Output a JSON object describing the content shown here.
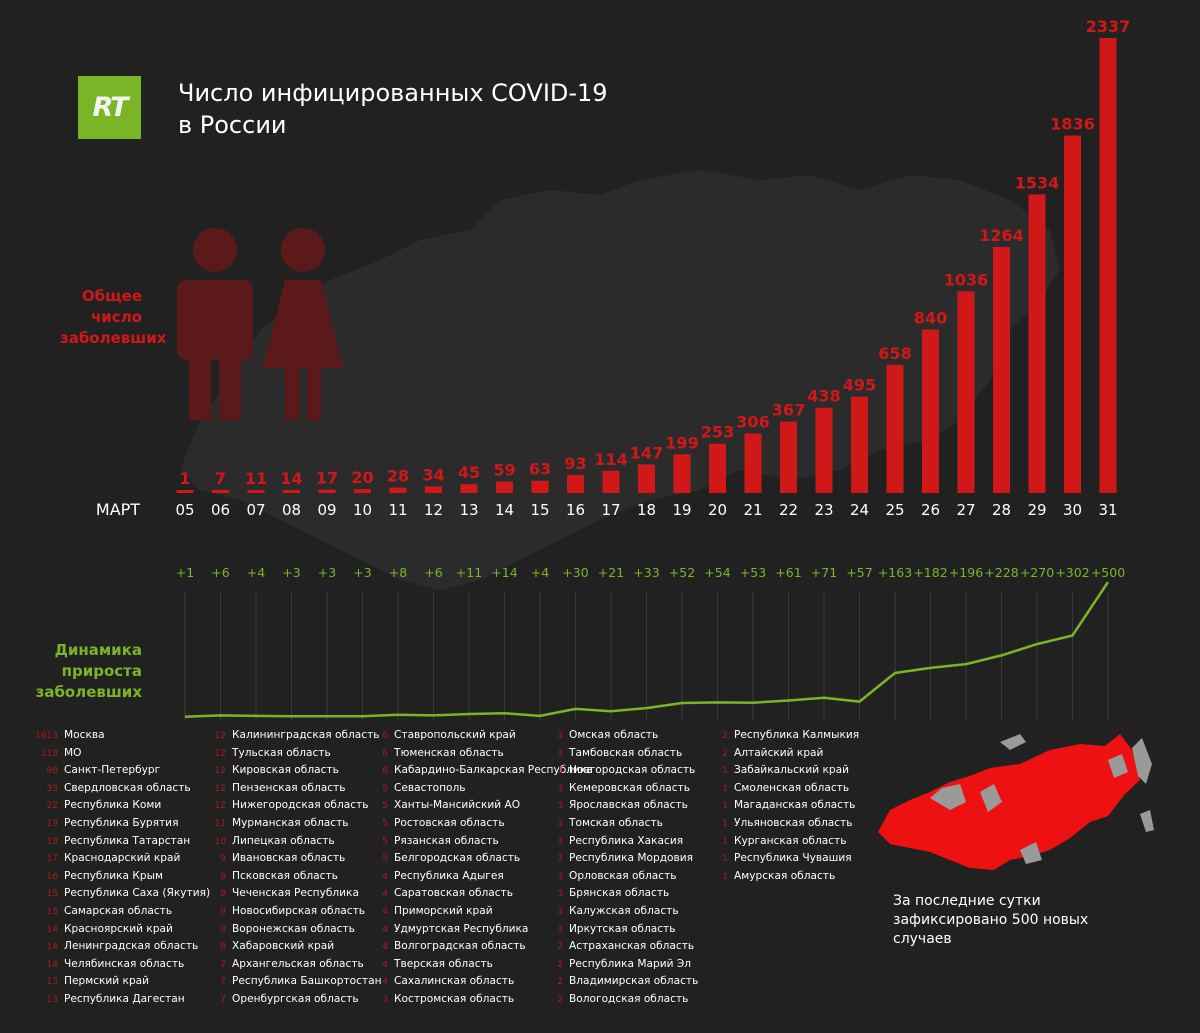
{
  "brand": {
    "logo_text": "RT",
    "color": "#7ab527"
  },
  "title": {
    "line1": "Число инфицированных COVID-19",
    "line2": "в России"
  },
  "total_label": [
    "Общее",
    "число",
    "заболевших"
  ],
  "growth_label": [
    "Динамика",
    "прироста",
    "заболевших"
  ],
  "month_label": "МАРТ",
  "icons": [
    "male-figure-icon",
    "female-figure-icon"
  ],
  "colors": {
    "total": "#d01818",
    "growth": "#7ab527",
    "background": "#222122",
    "affected_region": "#ee1111",
    "unaffected_region": "#9a9a9a"
  },
  "chart_data": {
    "type": "bar",
    "categories": [
      "05",
      "06",
      "07",
      "08",
      "09",
      "10",
      "11",
      "12",
      "13",
      "14",
      "15",
      "16",
      "17",
      "18",
      "19",
      "20",
      "21",
      "22",
      "23",
      "24",
      "25",
      "26",
      "27",
      "28",
      "29",
      "30",
      "31"
    ],
    "series": [
      {
        "values": [
          1,
          7,
          11,
          14,
          17,
          20,
          28,
          34,
          45,
          59,
          63,
          93,
          114,
          147,
          199,
          253,
          306,
          367,
          438,
          495,
          658,
          840,
          1036,
          1264,
          1534,
          1836,
          2337
        ]
      },
      {
        "values": [
          1,
          6,
          4,
          3,
          3,
          3,
          8,
          6,
          11,
          14,
          4,
          30,
          21,
          33,
          52,
          54,
          53,
          61,
          71,
          57,
          163,
          182,
          196,
          228,
          270,
          302,
          500
        ]
      }
    ],
    "growth_labels": [
      "+1",
      "+6",
      "+4",
      "+3",
      "+3",
      "+3",
      "+8",
      "+6",
      "+11",
      "+14",
      "+4",
      "+30",
      "+21",
      "+33",
      "+52",
      "+54",
      "+53",
      "+61",
      "+71",
      "+57",
      "+163",
      "+182",
      "+196",
      "+228",
      "+270",
      "+302",
      "+500"
    ]
  },
  "regions_columns": [
    [
      [
        "1613",
        "Москва"
      ],
      [
        "119",
        "МО"
      ],
      [
        "98",
        "Санкт-Петербург"
      ],
      [
        "33",
        "Свердловская область"
      ],
      [
        "22",
        "Республика Коми"
      ],
      [
        "19",
        "Республика Бурятия"
      ],
      [
        "19",
        "Республика Татарстан"
      ],
      [
        "17",
        "Краснодарский край"
      ],
      [
        "16",
        "Республика Крым"
      ],
      [
        "15",
        "Республика Саха (Якутия)"
      ],
      [
        "15",
        "Самарская область"
      ],
      [
        "14",
        "Красноярский край"
      ],
      [
        "14",
        "Ленинградская область"
      ],
      [
        "14",
        "Челябинская область"
      ],
      [
        "13",
        "Пермский край"
      ],
      [
        "13",
        "Республика Дагестан"
      ]
    ],
    [
      [
        "12",
        "Калининградская область"
      ],
      [
        "12",
        "Тульская область"
      ],
      [
        "12",
        "Кировская область"
      ],
      [
        "12",
        "Пензенская область"
      ],
      [
        "12",
        "Нижегородская область"
      ],
      [
        "11",
        "Мурманская область"
      ],
      [
        "10",
        "Липецкая область"
      ],
      [
        "9",
        "Ивановская область"
      ],
      [
        "9",
        "Псковская область"
      ],
      [
        "9",
        "Чеченская Республика"
      ],
      [
        "9",
        "Новосибирская область"
      ],
      [
        "8",
        "Воронежская область"
      ],
      [
        "8",
        "Хабаровский край"
      ],
      [
        "7",
        "Архангельская область"
      ],
      [
        "7",
        "Республика Башкортостан"
      ],
      [
        "7",
        "Оренбургская область"
      ]
    ],
    [
      [
        "6",
        "Ставропольский край"
      ],
      [
        "6",
        "Тюменская область"
      ],
      [
        "6",
        "Кабардино-Балкарская Республика"
      ],
      [
        "5",
        "Севастополь"
      ],
      [
        "5",
        "Ханты-Мансийский АО"
      ],
      [
        "5",
        "Ростовская область"
      ],
      [
        "5",
        "Рязанская область"
      ],
      [
        "5",
        "Белгородская область"
      ],
      [
        "4",
        "Республика Адыгея"
      ],
      [
        "4",
        "Саратовская область"
      ],
      [
        "4",
        "Приморский край"
      ],
      [
        "4",
        "Удмуртская Республика"
      ],
      [
        "4",
        "Волгоградская область"
      ],
      [
        "4",
        "Тверская область"
      ],
      [
        "4",
        "Сахалинская область"
      ],
      [
        "3",
        "Костромская область"
      ]
    ],
    [
      [
        "3",
        "Омская область"
      ],
      [
        "3",
        "Тамбовская область"
      ],
      [
        "3",
        "Новгородская область"
      ],
      [
        "3",
        "Кемеровская область"
      ],
      [
        "3",
        "Ярославская область"
      ],
      [
        "3",
        "Томская область"
      ],
      [
        "3",
        "Республика Хакасия"
      ],
      [
        "3",
        "Республика Мордовия"
      ],
      [
        "3",
        "Орловская область"
      ],
      [
        "3",
        "Брянская область"
      ],
      [
        "3",
        "Калужская область"
      ],
      [
        "3",
        "Иркутская область"
      ],
      [
        "2",
        "Астраханская область"
      ],
      [
        "2",
        "Республика Марий Эл"
      ],
      [
        "2",
        "Владимирская область"
      ],
      [
        "2",
        "Вологодская область"
      ]
    ],
    [
      [
        "2",
        "Республика Калмыкия"
      ],
      [
        "2",
        "Алтайский край"
      ],
      [
        "1",
        "Забайкальский край"
      ],
      [
        "1",
        "Смоленская область"
      ],
      [
        "1",
        "Магаданская область"
      ],
      [
        "1",
        "Ульяновская область"
      ],
      [
        "1",
        "Курганская область"
      ],
      [
        "1",
        "Республика Чувашия"
      ],
      [
        "1",
        "Амурская область"
      ]
    ]
  ],
  "note": "За последние сутки зафиксировано 500 новых случаев"
}
